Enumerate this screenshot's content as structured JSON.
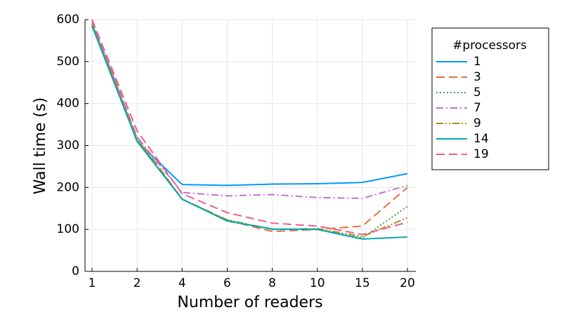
{
  "chart_data": {
    "type": "line",
    "x_label": "Number of readers",
    "y_label": "Wall time (s)",
    "categories": [
      "1",
      "2",
      "4",
      "6",
      "8",
      "10",
      "15",
      "20"
    ],
    "ylim": [
      0,
      600
    ],
    "yticks": [
      0,
      100,
      200,
      300,
      400,
      500,
      600
    ],
    "grid": true,
    "legend_title": "#processors",
    "legend_position": "outside-right",
    "series": [
      {
        "name": "1",
        "color": "#009af9",
        "dash": "solid",
        "values": [
          590,
          310,
          207,
          205,
          208,
          209,
          212,
          233
        ]
      },
      {
        "name": "3",
        "color": "#e26f46",
        "dash": "dash",
        "values": [
          600,
          320,
          172,
          122,
          95,
          100,
          108,
          200
        ]
      },
      {
        "name": "5",
        "color": "#3ea44e",
        "dash": "dot",
        "values": [
          590,
          315,
          172,
          122,
          100,
          100,
          80,
          155
        ]
      },
      {
        "name": "7",
        "color": "#c271d2",
        "dash": "dashdot",
        "values": [
          595,
          320,
          188,
          180,
          183,
          176,
          174,
          205
        ]
      },
      {
        "name": "9",
        "color": "#ac8e18",
        "dash": "dashdotdot",
        "values": [
          590,
          315,
          172,
          123,
          100,
          102,
          83,
          128
        ]
      },
      {
        "name": "14",
        "color": "#00a9ad",
        "dash": "solid",
        "values": [
          585,
          310,
          172,
          120,
          101,
          100,
          77,
          82
        ]
      },
      {
        "name": "19",
        "color": "#ed5e93",
        "dash": "dash",
        "values": [
          600,
          335,
          185,
          140,
          115,
          108,
          88,
          117
        ]
      }
    ]
  }
}
